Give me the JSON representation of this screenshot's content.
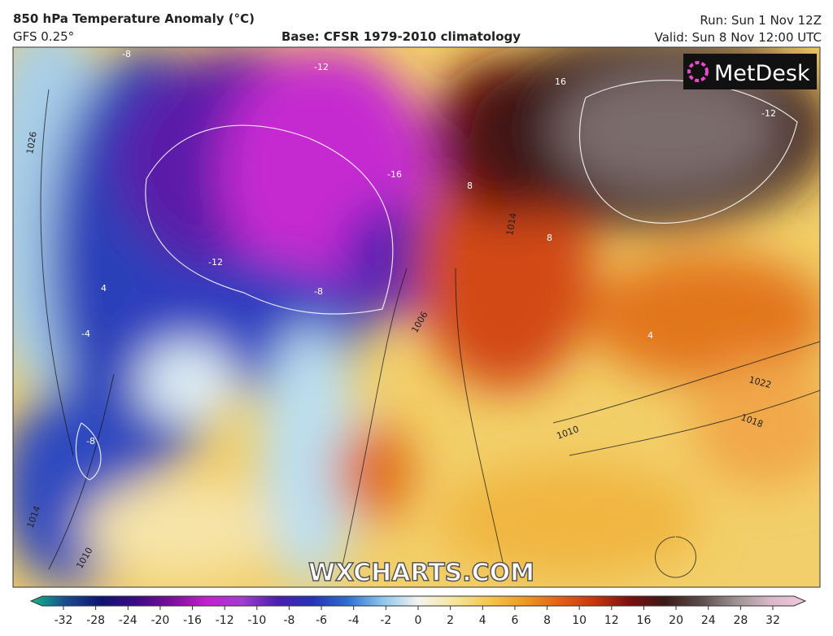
{
  "header": {
    "title": "850 hPa Temperature Anomaly (°C)",
    "model": "GFS 0.25°",
    "base": "Base: CFSR 1979-2010 climatology",
    "run": "Run: Sun 1 Nov 12Z",
    "valid": "Valid: Sun 8 Nov 12:00 UTC"
  },
  "logo": "MetDesk",
  "watermark": "WXCHARTS.COM",
  "map_labels": [
    "-8",
    "-12",
    "-16",
    "-12",
    "-8",
    "1026",
    "1014",
    "1006",
    "1010",
    "1022",
    "1018",
    "8",
    "16",
    "-12",
    "4",
    "-4",
    "8",
    "4",
    "1010",
    "1014",
    "-8"
  ],
  "colorbar": {
    "ticks": [
      -32,
      -28,
      -24,
      -20,
      -16,
      -12,
      -10,
      -8,
      -6,
      -4,
      -2,
      0,
      2,
      4,
      6,
      8,
      10,
      12,
      16,
      20,
      24,
      28,
      32
    ],
    "colors": [
      "#0fb98a",
      "#1b4a8c",
      "#0e1470",
      "#3b0a86",
      "#7a0f9a",
      "#c41fd0",
      "#a13ed0",
      "#4a1fb0",
      "#2632b8",
      "#2f6fd0",
      "#8ec6ea",
      "#f4f4f0",
      "#f5e6a0",
      "#f3c84b",
      "#ee9a24",
      "#e46216",
      "#c8350e",
      "#7a1010",
      "#3a1a18",
      "#5a4a4a",
      "#9a9090",
      "#d8b8c8",
      "#f0c8e0"
    ]
  }
}
